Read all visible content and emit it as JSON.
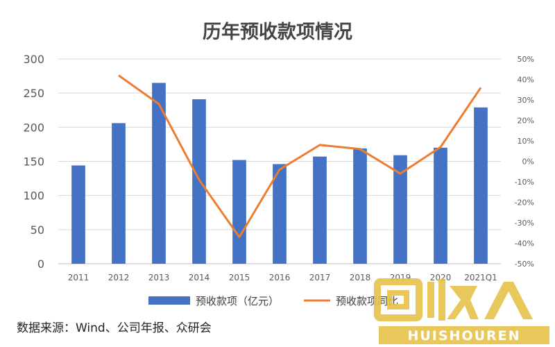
{
  "chart_data": {
    "type": "bar",
    "title": "历年预收款项情况",
    "categories": [
      "2011",
      "2012",
      "2013",
      "2014",
      "2015",
      "2016",
      "2017",
      "2018",
      "2019",
      "2020",
      "2021Q1"
    ],
    "series": [
      {
        "name": "预收款项（亿元）",
        "type": "bar",
        "axis": "left",
        "color": "#4472C4",
        "values": [
          144,
          206,
          265,
          241,
          152,
          146,
          157,
          169,
          159,
          170,
          229
        ]
      },
      {
        "name": "预收款项同比",
        "type": "line",
        "axis": "right",
        "color": "#ED7D31",
        "values": [
          null,
          42,
          28,
          -9,
          -37,
          -4,
          8,
          6,
          -6,
          7,
          36
        ]
      }
    ],
    "ylim_left": [
      0,
      300
    ],
    "yticks_left": [
      "0",
      "50",
      "100",
      "150",
      "200",
      "250",
      "300"
    ],
    "ylim_right": [
      -50,
      50
    ],
    "yticks_right": [
      "-50%",
      "-40%",
      "-30%",
      "-20%",
      "-10%",
      "0%",
      "10%",
      "20%",
      "30%",
      "40%",
      "50%"
    ],
    "grid": true,
    "legend_position": "bottom",
    "legend": [
      "预收款项（亿元）",
      "预收款项同比"
    ]
  },
  "source_text": "数据来源：Wind、公司年报、众研会",
  "watermark": {
    "text_cn": "回收",
    "text_en": "HUISHOUREN",
    "color": "#E6C34A"
  }
}
